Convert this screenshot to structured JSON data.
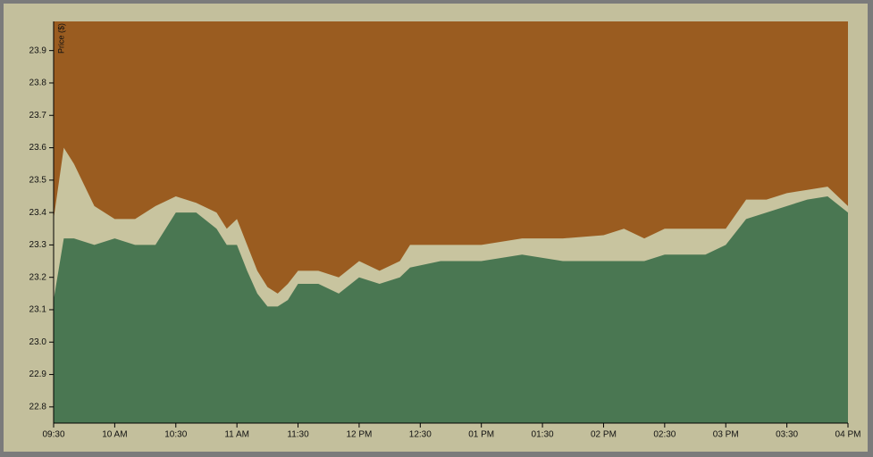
{
  "chart_data": {
    "type": "area",
    "y_label": "Price ($)",
    "x": [
      570,
      575,
      580,
      590,
      600,
      610,
      620,
      630,
      640,
      650,
      655,
      660,
      665,
      670,
      675,
      680,
      685,
      690,
      700,
      710,
      720,
      730,
      740,
      745,
      760,
      780,
      800,
      820,
      840,
      850,
      860,
      870,
      880,
      890,
      900,
      910,
      920,
      930,
      940,
      950,
      960
    ],
    "series": [
      {
        "color": "#9a5c20",
        "values": [
          23.38,
          23.6,
          23.55,
          23.42,
          23.38,
          23.38,
          23.42,
          23.45,
          23.43,
          23.4,
          23.35,
          23.38,
          23.3,
          23.22,
          23.17,
          23.15,
          23.18,
          23.22,
          23.22,
          23.2,
          23.25,
          23.22,
          23.25,
          23.3,
          23.3,
          23.3,
          23.32,
          23.32,
          23.33,
          23.35,
          23.32,
          23.35,
          23.35,
          23.35,
          23.35,
          23.44,
          23.44,
          23.46,
          23.47,
          23.48,
          23.42
        ]
      },
      {
        "color": "#4a7752",
        "values": [
          23.13,
          23.32,
          23.32,
          23.3,
          23.32,
          23.3,
          23.3,
          23.4,
          23.4,
          23.35,
          23.3,
          23.3,
          23.22,
          23.15,
          23.11,
          23.11,
          23.13,
          23.18,
          23.18,
          23.15,
          23.2,
          23.18,
          23.2,
          23.23,
          23.25,
          23.25,
          23.27,
          23.25,
          23.25,
          23.25,
          23.25,
          23.27,
          23.27,
          23.27,
          23.3,
          23.38,
          23.4,
          23.42,
          23.44,
          23.45,
          23.4
        ]
      }
    ],
    "spread_color": "#c8c49f",
    "xlim": [
      570,
      960
    ],
    "xticks": [
      {
        "value": 570,
        "label": "09:30"
      },
      {
        "value": 600,
        "label": "10 AM"
      },
      {
        "value": 630,
        "label": "10:30"
      },
      {
        "value": 660,
        "label": "11 AM"
      },
      {
        "value": 690,
        "label": "11:30"
      },
      {
        "value": 720,
        "label": "12 PM"
      },
      {
        "value": 750,
        "label": "12:30"
      },
      {
        "value": 780,
        "label": "01 PM"
      },
      {
        "value": 810,
        "label": "01:30"
      },
      {
        "value": 840,
        "label": "02 PM"
      },
      {
        "value": 870,
        "label": "02:30"
      },
      {
        "value": 900,
        "label": "03 PM"
      },
      {
        "value": 930,
        "label": "03:30"
      },
      {
        "value": 960,
        "label": "04 PM"
      }
    ],
    "ylim": [
      22.75,
      23.99
    ],
    "yticks": [
      22.8,
      22.9,
      {
        "value": 23,
        "label": "23.0"
      },
      23.1,
      23.2,
      23.3,
      23.4,
      23.5,
      23.6,
      23.7,
      23.8,
      23.9
    ]
  }
}
